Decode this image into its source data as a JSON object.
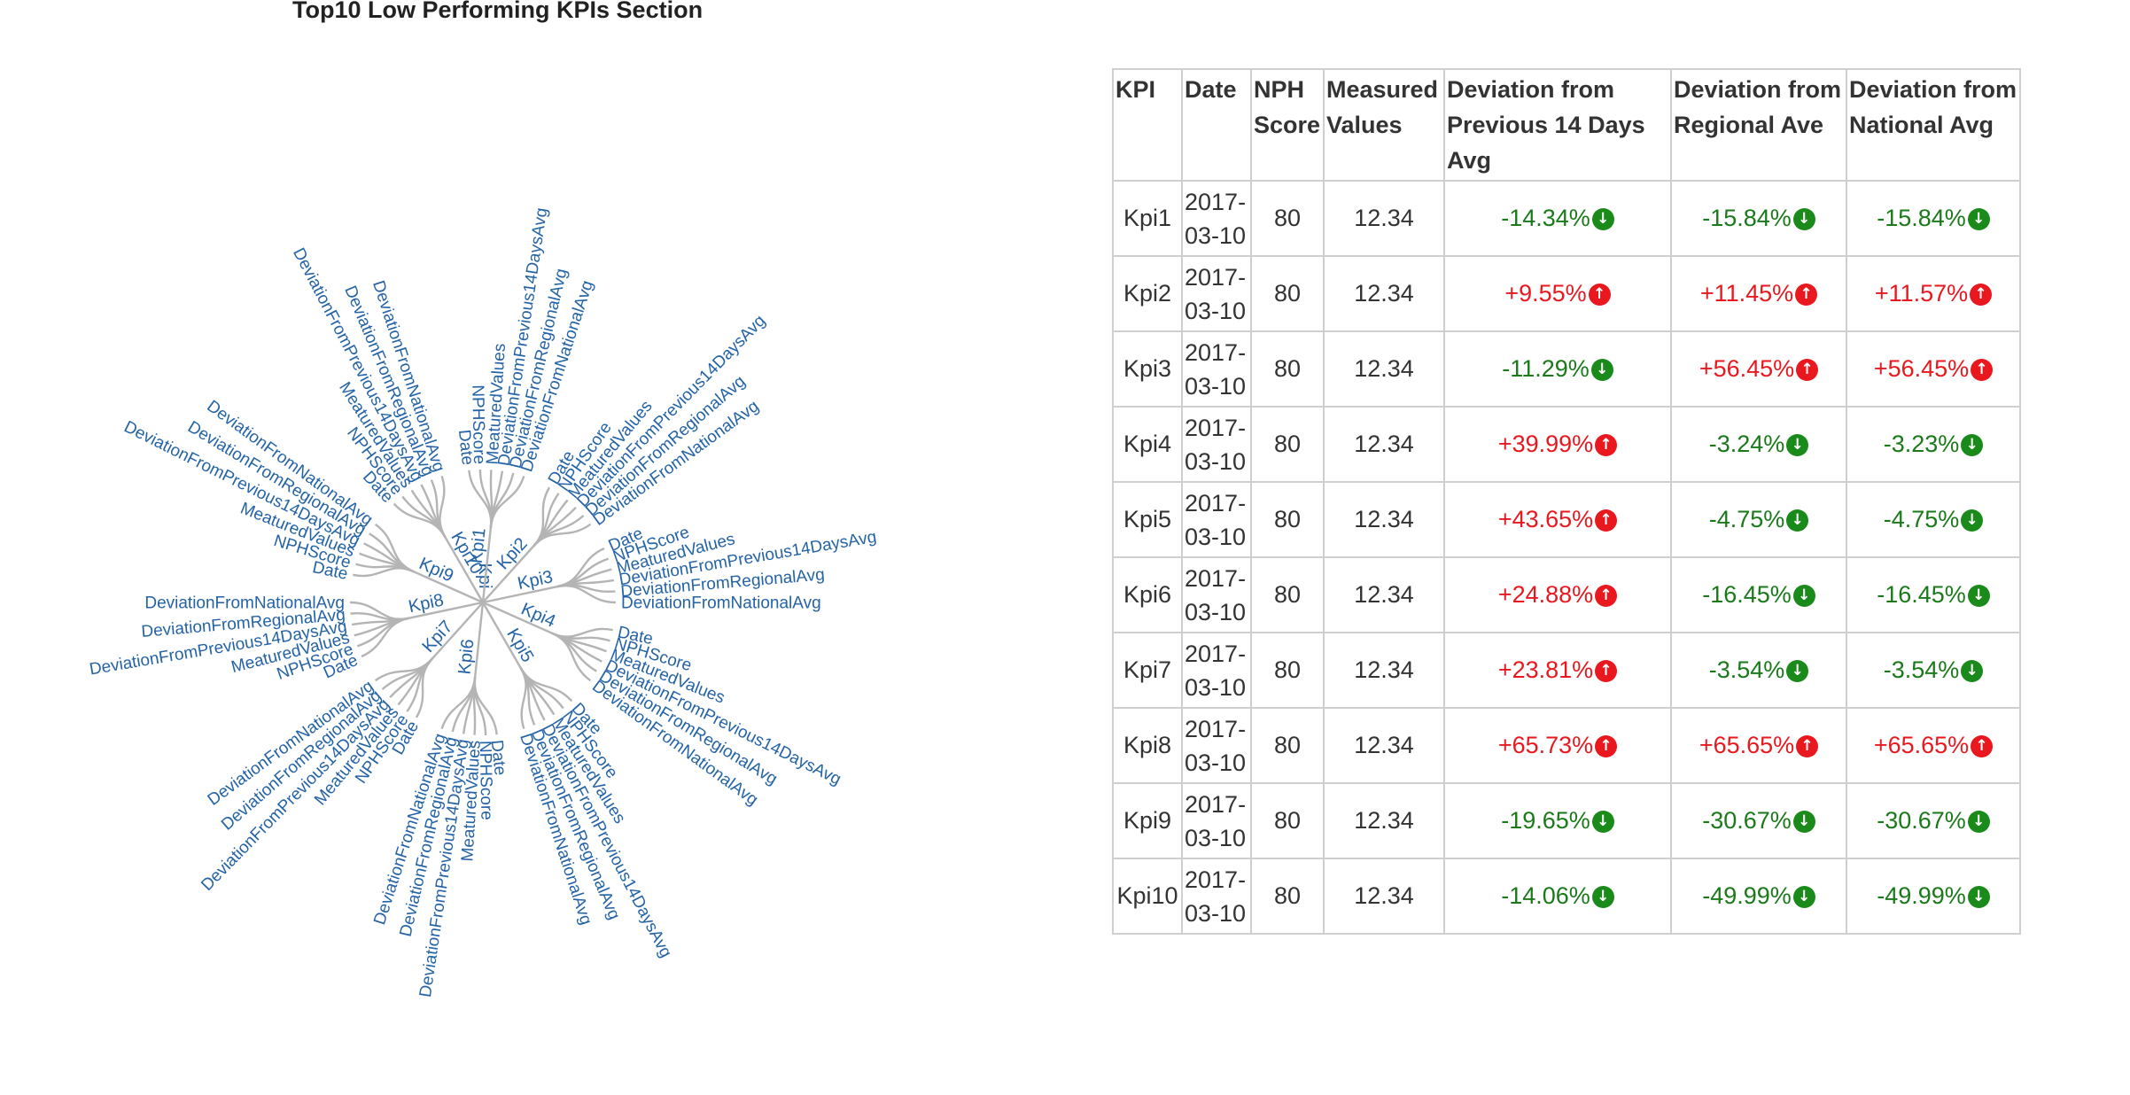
{
  "section_title": "Top10 Low Performing KPIs Section",
  "tree": {
    "root": "Kpi",
    "kpis": [
      "Kpi1",
      "Kpi2",
      "Kpi3",
      "Kpi4",
      "Kpi5",
      "Kpi6",
      "Kpi7",
      "Kpi8",
      "Kpi9",
      "Kpi10"
    ],
    "children": [
      "Date",
      "NPHScore",
      "MeaturedValues",
      "DeviationFromPrevious14DaysAvg",
      "DeviationFromRegionalAvg",
      "DeviationFromNationalAvg"
    ],
    "link_color": "#b4b4b4",
    "text_color": "#2463a6"
  },
  "table": {
    "headers": [
      "KPI",
      "Date",
      "NPH Score",
      "Measured Values",
      "Deviation from Previous 14 Days Avg",
      "Deviation from Regional Ave",
      "Deviation from National Avg"
    ],
    "rows": [
      {
        "kpi": "Kpi1",
        "date_line1": "2017-",
        "date_line2": "03-10",
        "nph": "80",
        "measured": "12.34",
        "dev_prev": {
          "text": "-14.34%",
          "dir": "down"
        },
        "dev_regional": {
          "text": "-15.84%",
          "dir": "down"
        },
        "dev_national": {
          "text": "-15.84%",
          "dir": "down"
        }
      },
      {
        "kpi": "Kpi2",
        "date_line1": "2017-",
        "date_line2": "03-10",
        "nph": "80",
        "measured": "12.34",
        "dev_prev": {
          "text": "+9.55%",
          "dir": "up"
        },
        "dev_regional": {
          "text": "+11.45%",
          "dir": "up"
        },
        "dev_national": {
          "text": "+11.57%",
          "dir": "up"
        }
      },
      {
        "kpi": "Kpi3",
        "date_line1": "2017-",
        "date_line2": "03-10",
        "nph": "80",
        "measured": "12.34",
        "dev_prev": {
          "text": "-11.29%",
          "dir": "down"
        },
        "dev_regional": {
          "text": "+56.45%",
          "dir": "up"
        },
        "dev_national": {
          "text": "+56.45%",
          "dir": "up"
        }
      },
      {
        "kpi": "Kpi4",
        "date_line1": "2017-",
        "date_line2": "03-10",
        "nph": "80",
        "measured": "12.34",
        "dev_prev": {
          "text": "+39.99%",
          "dir": "up"
        },
        "dev_regional": {
          "text": "-3.24%",
          "dir": "down"
        },
        "dev_national": {
          "text": "-3.23%",
          "dir": "down"
        }
      },
      {
        "kpi": "Kpi5",
        "date_line1": "2017-",
        "date_line2": "03-10",
        "nph": "80",
        "measured": "12.34",
        "dev_prev": {
          "text": "+43.65%",
          "dir": "up"
        },
        "dev_regional": {
          "text": "-4.75%",
          "dir": "down"
        },
        "dev_national": {
          "text": "-4.75%",
          "dir": "down"
        }
      },
      {
        "kpi": "Kpi6",
        "date_line1": "2017-",
        "date_line2": "03-10",
        "nph": "80",
        "measured": "12.34",
        "dev_prev": {
          "text": "+24.88%",
          "dir": "up"
        },
        "dev_regional": {
          "text": "-16.45%",
          "dir": "down"
        },
        "dev_national": {
          "text": "-16.45%",
          "dir": "down"
        }
      },
      {
        "kpi": "Kpi7",
        "date_line1": "2017-",
        "date_line2": "03-10",
        "nph": "80",
        "measured": "12.34",
        "dev_prev": {
          "text": "+23.81%",
          "dir": "up"
        },
        "dev_regional": {
          "text": "-3.54%",
          "dir": "down"
        },
        "dev_national": {
          "text": "-3.54%",
          "dir": "down"
        }
      },
      {
        "kpi": "Kpi8",
        "date_line1": "2017-",
        "date_line2": "03-10",
        "nph": "80",
        "measured": "12.34",
        "dev_prev": {
          "text": "+65.73%",
          "dir": "up"
        },
        "dev_regional": {
          "text": "+65.65%",
          "dir": "up"
        },
        "dev_national": {
          "text": "+65.65%",
          "dir": "up"
        }
      },
      {
        "kpi": "Kpi9",
        "date_line1": "2017-",
        "date_line2": "03-10",
        "nph": "80",
        "measured": "12.34",
        "dev_prev": {
          "text": "-19.65%",
          "dir": "down"
        },
        "dev_regional": {
          "text": "-30.67%",
          "dir": "down"
        },
        "dev_national": {
          "text": "-30.67%",
          "dir": "down"
        }
      },
      {
        "kpi": "Kpi10",
        "date_line1": "2017-",
        "date_line2": "03-10",
        "nph": "80",
        "measured": "12.34",
        "dev_prev": {
          "text": "-14.06%",
          "dir": "down"
        },
        "dev_regional": {
          "text": "-49.99%",
          "dir": "down"
        },
        "dev_national": {
          "text": "-49.99%",
          "dir": "down"
        }
      }
    ],
    "icons": {
      "down": "arrow-down-circle-icon",
      "up": "arrow-up-circle-icon"
    },
    "colors": {
      "down": "#1a7a1a",
      "up": "#e8181e",
      "border": "#cfcfcf"
    }
  }
}
